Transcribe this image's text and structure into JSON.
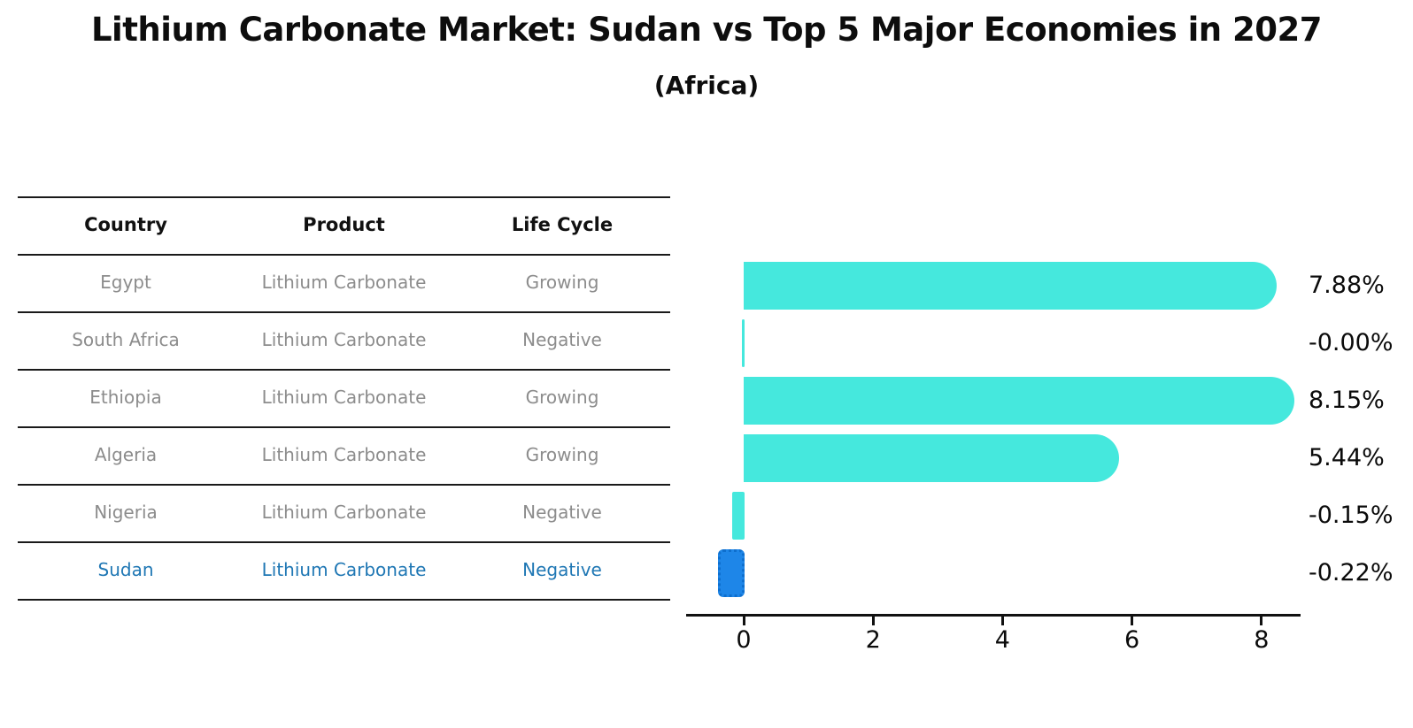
{
  "title": "Lithium Carbonate Market: Sudan vs Top 5 Major Economies in 2027",
  "subtitle": "(Africa)",
  "colors": {
    "bar_cyan": "#45e8dd",
    "sudan_bar": "#1e86e8",
    "sudan_bar_border": "#0e6fce",
    "table_text": "#8c8c8c",
    "highlight_text": "#1f77b4",
    "axis": "#111111"
  },
  "table": {
    "headers": [
      "Country",
      "Product",
      "Life Cycle"
    ],
    "rows": [
      {
        "country": "Egypt",
        "product": "Lithium Carbonate",
        "life_cycle": "Growing",
        "highlight": false
      },
      {
        "country": "South Africa",
        "product": "Lithium Carbonate",
        "life_cycle": "Negative",
        "highlight": false
      },
      {
        "country": "Ethiopia",
        "product": "Lithium Carbonate",
        "life_cycle": "Growing",
        "highlight": false
      },
      {
        "country": "Algeria",
        "product": "Lithium Carbonate",
        "life_cycle": "Growing",
        "highlight": false
      },
      {
        "country": "Nigeria",
        "product": "Lithium Carbonate",
        "life_cycle": "Negative",
        "highlight": false
      },
      {
        "country": "Sudan",
        "product": "Lithium Carbonate",
        "life_cycle": "Negative",
        "highlight": true
      }
    ]
  },
  "chart_data": {
    "type": "bar",
    "orientation": "horizontal",
    "title": "Lithium Carbonate Market: Sudan vs Top 5 Major Economies in 2027",
    "subtitle": "(Africa)",
    "categories": [
      "Egypt",
      "South Africa",
      "Ethiopia",
      "Algeria",
      "Nigeria",
      "Sudan"
    ],
    "values": [
      7.88,
      -0.0,
      8.15,
      5.44,
      -0.15,
      -0.22
    ],
    "labels": [
      "7.88%",
      "-0.00%",
      "8.15%",
      "5.44%",
      "-0.15%",
      "-0.22%"
    ],
    "unit": "%",
    "xticks": [
      0,
      2,
      4,
      6,
      8
    ],
    "xlim": [
      -0.9,
      8.6
    ],
    "highlight_index": 5,
    "grid": false,
    "legend": false
  }
}
